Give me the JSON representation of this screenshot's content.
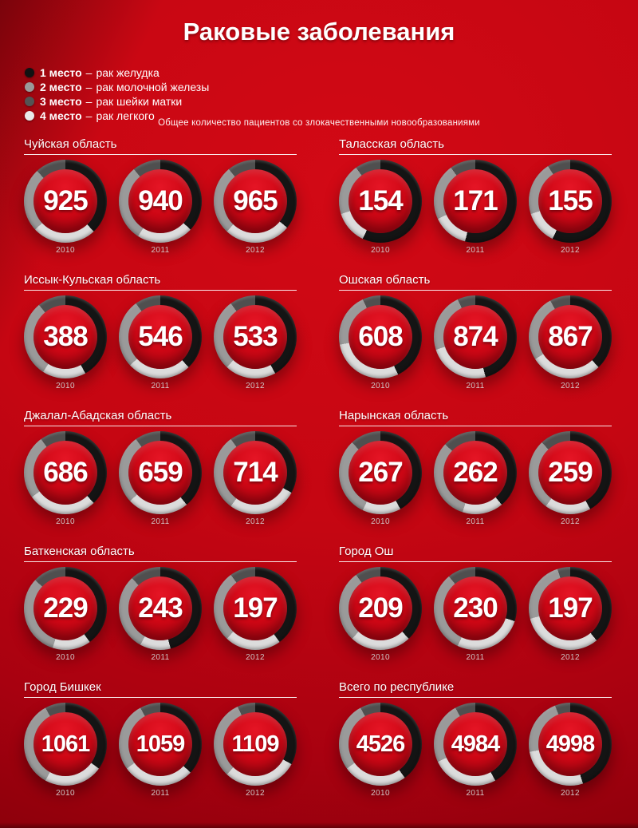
{
  "header": {
    "title": "Раковые заболевания",
    "subtitle": "Общее количество пациентов со злокачественными новообразованиями"
  },
  "legend": {
    "separator": "–",
    "items": [
      {
        "rank": "1 место",
        "label": "рак желудка",
        "color": "#121212"
      },
      {
        "rank": "2 место",
        "label": "рак молочной железы",
        "color": "#9a9a9a"
      },
      {
        "rank": "3 место",
        "label": "рак шейки матки",
        "color": "#545454"
      },
      {
        "rank": "4 место",
        "label": "рак легкого",
        "color": "#e9e9e9"
      }
    ]
  },
  "chart_data": {
    "type": "donut",
    "description_fields": "segments are percent of ring, drawn clockwise from top in draw_order; rank1=рак желудка(black), rank2=рак молочной железы(gray), rank3=рак шейки матки(dark gray), rank4=рак легкого(white)",
    "draw_order": [
      "rank1",
      "rank4",
      "rank2",
      "rank3"
    ],
    "ring_colors": {
      "rank1": "#141414",
      "rank2": "#9a9a9a",
      "rank3": "#4f4f4f",
      "rank4": "#dcdcdc"
    },
    "years": [
      "2010",
      "2011",
      "2012"
    ],
    "sections": [
      {
        "region": "Чуйская область",
        "donuts": [
          {
            "year": "2010",
            "value": 925,
            "segments": {
              "rank1": 38,
              "rank4": 25,
              "rank2": 25,
              "rank3": 12
            }
          },
          {
            "year": "2011",
            "value": 940,
            "segments": {
              "rank1": 37,
              "rank4": 22,
              "rank2": 30,
              "rank3": 11
            }
          },
          {
            "year": "2012",
            "value": 965,
            "segments": {
              "rank1": 36,
              "rank4": 26,
              "rank2": 27,
              "rank3": 11
            }
          }
        ]
      },
      {
        "region": "Таласская область",
        "donuts": [
          {
            "year": "2010",
            "value": 154,
            "segments": {
              "rank1": 57,
              "rank4": 13,
              "rank2": 20,
              "rank3": 10
            }
          },
          {
            "year": "2011",
            "value": 171,
            "segments": {
              "rank1": 54,
              "rank4": 14,
              "rank2": 22,
              "rank3": 10
            }
          },
          {
            "year": "2012",
            "value": 155,
            "segments": {
              "rank1": 57,
              "rank4": 13,
              "rank2": 21,
              "rank3": 9
            }
          }
        ]
      },
      {
        "region": "Иссык-Кульская область",
        "donuts": [
          {
            "year": "2010",
            "value": 388,
            "segments": {
              "rank1": 42,
              "rank4": 17,
              "rank2": 30,
              "rank3": 11
            }
          },
          {
            "year": "2011",
            "value": 546,
            "segments": {
              "rank1": 38,
              "rank4": 25,
              "rank2": 27,
              "rank3": 10
            }
          },
          {
            "year": "2012",
            "value": 533,
            "segments": {
              "rank1": 42,
              "rank4": 20,
              "rank2": 28,
              "rank3": 10
            }
          }
        ]
      },
      {
        "region": "Ошская область",
        "donuts": [
          {
            "year": "2010",
            "value": 608,
            "segments": {
              "rank1": 43,
              "rank4": 29,
              "rank2": 21,
              "rank3": 7
            }
          },
          {
            "year": "2011",
            "value": 874,
            "segments": {
              "rank1": 46,
              "rank4": 24,
              "rank2": 23,
              "rank3": 7
            }
          },
          {
            "year": "2012",
            "value": 867,
            "segments": {
              "rank1": 38,
              "rank4": 28,
              "rank2": 26,
              "rank3": 8
            }
          }
        ]
      },
      {
        "region": "Джалал-Абадская область",
        "donuts": [
          {
            "year": "2010",
            "value": 686,
            "segments": {
              "rank1": 38,
              "rank4": 27,
              "rank2": 25,
              "rank3": 10
            }
          },
          {
            "year": "2011",
            "value": 659,
            "segments": {
              "rank1": 39,
              "rank4": 24,
              "rank2": 27,
              "rank3": 10
            }
          },
          {
            "year": "2012",
            "value": 714,
            "segments": {
              "rank1": 33,
              "rank4": 27,
              "rank2": 30,
              "rank3": 10
            }
          }
        ]
      },
      {
        "region": "Нарынская область",
        "donuts": [
          {
            "year": "2010",
            "value": 267,
            "segments": {
              "rank1": 42,
              "rank4": 15,
              "rank2": 31,
              "rank3": 12
            }
          },
          {
            "year": "2011",
            "value": 262,
            "segments": {
              "rank1": 39,
              "rank4": 16,
              "rank2": 32,
              "rank3": 13
            }
          },
          {
            "year": "2012",
            "value": 259,
            "segments": {
              "rank1": 42,
              "rank4": 18,
              "rank2": 28,
              "rank3": 12
            }
          }
        ]
      },
      {
        "region": "Баткенская область",
        "donuts": [
          {
            "year": "2010",
            "value": 229,
            "segments": {
              "rank1": 40,
              "rank4": 15,
              "rank2": 32,
              "rank3": 13
            }
          },
          {
            "year": "2011",
            "value": 243,
            "segments": {
              "rank1": 46,
              "rank4": 12,
              "rank2": 30,
              "rank3": 12
            }
          },
          {
            "year": "2012",
            "value": 197,
            "segments": {
              "rank1": 40,
              "rank4": 22,
              "rank2": 28,
              "rank3": 10
            }
          }
        ]
      },
      {
        "region": "Город Ош",
        "donuts": [
          {
            "year": "2010",
            "value": 209,
            "segments": {
              "rank1": 38,
              "rank4": 24,
              "rank2": 28,
              "rank3": 10
            }
          },
          {
            "year": "2011",
            "value": 230,
            "segments": {
              "rank1": 30,
              "rank4": 27,
              "rank2": 32,
              "rank3": 11
            }
          },
          {
            "year": "2012",
            "value": 197,
            "segments": {
              "rank1": 39,
              "rank4": 32,
              "rank2": 24,
              "rank3": 5
            }
          }
        ]
      },
      {
        "region": "Город Бишкек",
        "donuts": [
          {
            "year": "2010",
            "value": 1061,
            "segments": {
              "rank1": 35,
              "rank4": 23,
              "rank2": 34,
              "rank3": 8
            }
          },
          {
            "year": "2011",
            "value": 1059,
            "segments": {
              "rank1": 37,
              "rank4": 28,
              "rank2": 27,
              "rank3": 8
            }
          },
          {
            "year": "2012",
            "value": 1109,
            "segments": {
              "rank1": 33,
              "rank4": 29,
              "rank2": 31,
              "rank3": 7
            }
          }
        ]
      },
      {
        "region": "Всего по республике",
        "donuts": [
          {
            "year": "2010",
            "value": 4526,
            "segments": {
              "rank1": 40,
              "rank4": 25,
              "rank2": 27,
              "rank3": 8
            }
          },
          {
            "year": "2011",
            "value": 4984,
            "segments": {
              "rank1": 42,
              "rank4": 26,
              "rank2": 24,
              "rank3": 8
            }
          },
          {
            "year": "2012",
            "value": 4998,
            "segments": {
              "rank1": 45,
              "rank4": 27,
              "rank2": 22,
              "rank3": 6
            }
          }
        ]
      }
    ]
  }
}
